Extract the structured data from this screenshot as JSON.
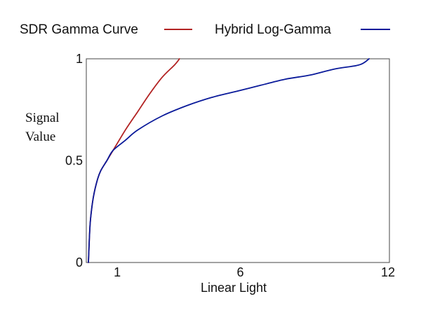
{
  "chart_data": {
    "type": "line",
    "title": "",
    "xlabel": "Linear Light",
    "ylabel": [
      "Signal",
      "Value"
    ],
    "xlim": [
      0,
      12
    ],
    "ylim": [
      0,
      1
    ],
    "x_ticks": [
      {
        "value": 1,
        "label": "1"
      },
      {
        "value": 6,
        "label": "6"
      },
      {
        "value": 12,
        "label": "12"
      }
    ],
    "y_ticks": [
      {
        "value": 0,
        "label": "0"
      },
      {
        "value": 0.5,
        "label": "0.5"
      },
      {
        "value": 1,
        "label": "1"
      }
    ],
    "grid": false,
    "legend_position": "top",
    "series": [
      {
        "name": "SDR Gamma Curve",
        "color": "#b22222",
        "points": [
          [
            0,
            0
          ],
          [
            0.05,
            0.15
          ],
          [
            0.1,
            0.23
          ],
          [
            0.2,
            0.32
          ],
          [
            0.35,
            0.4
          ],
          [
            0.5,
            0.45
          ],
          [
            0.75,
            0.5
          ],
          [
            1,
            0.55
          ],
          [
            1.5,
            0.65
          ],
          [
            2,
            0.74
          ],
          [
            2.5,
            0.83
          ],
          [
            3,
            0.91
          ],
          [
            3.5,
            0.97
          ],
          [
            3.7,
            1.0
          ]
        ]
      },
      {
        "name": "Hybrid Log-Gamma",
        "color": "#0a1a9a",
        "points": [
          [
            0,
            0
          ],
          [
            0.05,
            0.15
          ],
          [
            0.1,
            0.23
          ],
          [
            0.2,
            0.32
          ],
          [
            0.35,
            0.4
          ],
          [
            0.5,
            0.45
          ],
          [
            0.75,
            0.5
          ],
          [
            1,
            0.55
          ],
          [
            1.5,
            0.6
          ],
          [
            2,
            0.65
          ],
          [
            3,
            0.72
          ],
          [
            4,
            0.77
          ],
          [
            5,
            0.81
          ],
          [
            6,
            0.84
          ],
          [
            7,
            0.87
          ],
          [
            8,
            0.9
          ],
          [
            9,
            0.92
          ],
          [
            10,
            0.95
          ],
          [
            11,
            0.97
          ],
          [
            11.4,
            1.0
          ]
        ]
      }
    ]
  }
}
